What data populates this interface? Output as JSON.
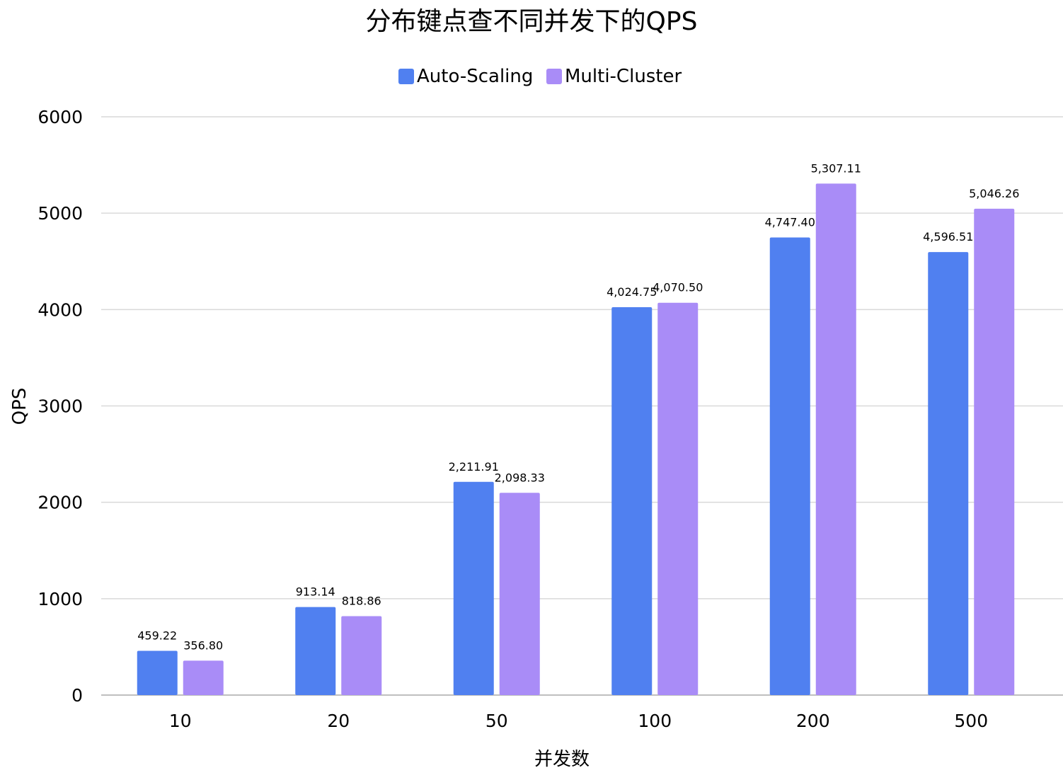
{
  "chart_data": {
    "type": "bar",
    "title": "分布键点查不同并发下的QPS",
    "xlabel": "并发数",
    "ylabel": "QPS",
    "ylim": [
      0,
      6000
    ],
    "yticks": [
      "0",
      "1000",
      "2000",
      "3000",
      "4000",
      "5000",
      "6000"
    ],
    "categories": [
      "10",
      "20",
      "50",
      "100",
      "200",
      "500"
    ],
    "series": [
      {
        "name": "Auto-Scaling",
        "color": "#5080f0",
        "values": [
          459.22,
          913.14,
          2211.91,
          4024.75,
          4747.4,
          4596.51
        ],
        "labels": [
          "459.22",
          "913.14",
          "2,211.91",
          "4,024.75",
          "4,747.40",
          "4,596.51"
        ]
      },
      {
        "name": "Multi-Cluster",
        "color": "#a98cf7",
        "values": [
          356.8,
          818.86,
          2098.33,
          4070.5,
          5307.11,
          5046.26
        ],
        "labels": [
          "356.80",
          "818.86",
          "2,098.33",
          "4,070.50",
          "5,307.11",
          "5,046.26"
        ]
      }
    ],
    "grid": true,
    "legend_position": "top-center"
  }
}
